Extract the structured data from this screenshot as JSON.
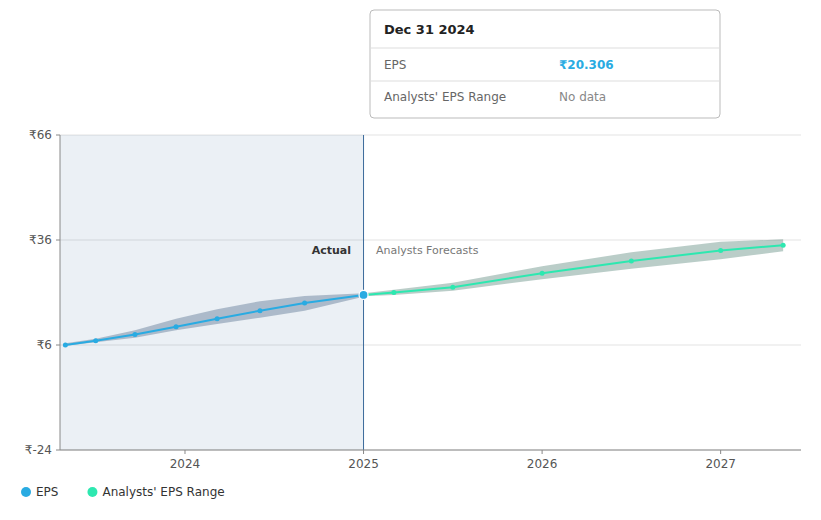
{
  "chart_data": {
    "type": "line",
    "xlim": [
      2023.3,
      2027.45
    ],
    "xticks": [
      2024,
      2025,
      2026,
      2027
    ],
    "ylim": [
      -24,
      66
    ],
    "yticks": [
      {
        "value": -24,
        "label": "₹-24"
      },
      {
        "value": 6,
        "label": "₹6"
      },
      {
        "value": 36,
        "label": "₹36"
      },
      {
        "value": 66,
        "label": "₹66"
      }
    ],
    "grid": true,
    "legend": "bottom",
    "marker": "circle",
    "series": [
      {
        "name": "EPS",
        "color": "#29abe2",
        "band_color": "#1a4068",
        "x": [
          2023.33,
          2023.5,
          2023.72,
          2023.95,
          2024.18,
          2024.42,
          2024.67,
          2025.0
        ],
        "values": [
          6.0,
          7.2,
          9.0,
          11.2,
          13.5,
          15.8,
          18.0,
          20.306
        ],
        "upper": [
          6.5,
          7.8,
          10.2,
          13.5,
          16.2,
          18.5,
          20.0,
          20.8
        ],
        "lower": [
          5.8,
          6.8,
          8.1,
          10.2,
          12.0,
          13.8,
          15.8,
          19.8
        ]
      },
      {
        "name": "Analysts' EPS Range",
        "color": "#2de8b0",
        "band_color": "#1a5a4a",
        "x": [
          2025.0,
          2025.17,
          2025.5,
          2026.0,
          2026.5,
          2027.0,
          2027.35
        ],
        "values": [
          20.306,
          21.0,
          22.5,
          26.5,
          30.0,
          33.0,
          34.5
        ],
        "upper": [
          20.8,
          21.8,
          23.8,
          28.5,
          32.5,
          35.5,
          36.2
        ],
        "lower": [
          19.9,
          20.3,
          21.5,
          24.8,
          27.8,
          30.5,
          32.8
        ]
      }
    ],
    "divider": {
      "x": 2025.0,
      "color": "#3a6a9a"
    },
    "annotations": [
      {
        "text": "Actual",
        "x": 2024.93,
        "y": 34.2
      },
      {
        "text": "Analysts Forecasts",
        "x": 2025.07,
        "y": 34.2
      }
    ],
    "tooltip": {
      "title": "Dec 31 2024",
      "x": 2025.0,
      "rows": [
        {
          "label": "EPS",
          "value": 20.306,
          "value_label": "₹20.306"
        },
        {
          "label": "Analysts' EPS Range",
          "value_label": "No data"
        }
      ]
    }
  }
}
